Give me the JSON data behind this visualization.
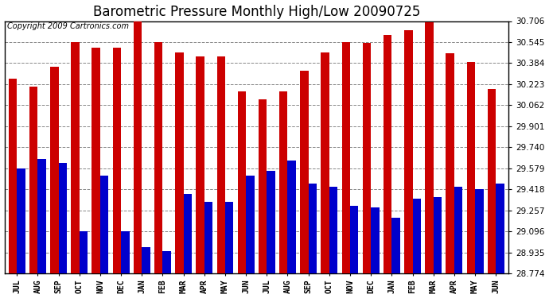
{
  "title": "Barometric Pressure Monthly High/Low 20090725",
  "copyright": "Copyright 2009 Cartronics.com",
  "categories": [
    "JUL",
    "AUG",
    "SEP",
    "OCT",
    "NOV",
    "DEC",
    "JAN",
    "FEB",
    "MAR",
    "APR",
    "MAY",
    "JUN",
    "JUL",
    "AUG",
    "SEP",
    "OCT",
    "NOV",
    "DEC",
    "JAN",
    "FEB",
    "MAR",
    "APR",
    "MAY",
    "JUN"
  ],
  "highs": [
    30.265,
    30.205,
    30.355,
    30.545,
    30.5,
    30.5,
    30.7,
    30.545,
    30.465,
    30.435,
    30.435,
    30.165,
    30.105,
    30.17,
    30.325,
    30.465,
    30.545,
    30.54,
    30.6,
    30.635,
    30.695,
    30.46,
    30.39,
    30.185
  ],
  "lows": [
    29.575,
    29.65,
    29.62,
    29.1,
    29.525,
    29.095,
    28.975,
    28.945,
    29.385,
    29.325,
    29.32,
    29.525,
    29.56,
    29.64,
    29.465,
    29.435,
    29.295,
    29.28,
    29.2,
    29.345,
    29.36,
    29.435,
    29.42,
    29.46
  ],
  "high_color": "#cc0000",
  "low_color": "#0000cc",
  "background_color": "#ffffff",
  "plot_bg_color": "#ffffff",
  "grid_color": "#888888",
  "ymin": 28.774,
  "ymax": 30.706,
  "yticks": [
    28.774,
    28.935,
    29.096,
    29.257,
    29.418,
    29.579,
    29.74,
    29.901,
    30.062,
    30.223,
    30.384,
    30.545,
    30.706
  ],
  "title_fontsize": 12,
  "copyright_fontsize": 7
}
